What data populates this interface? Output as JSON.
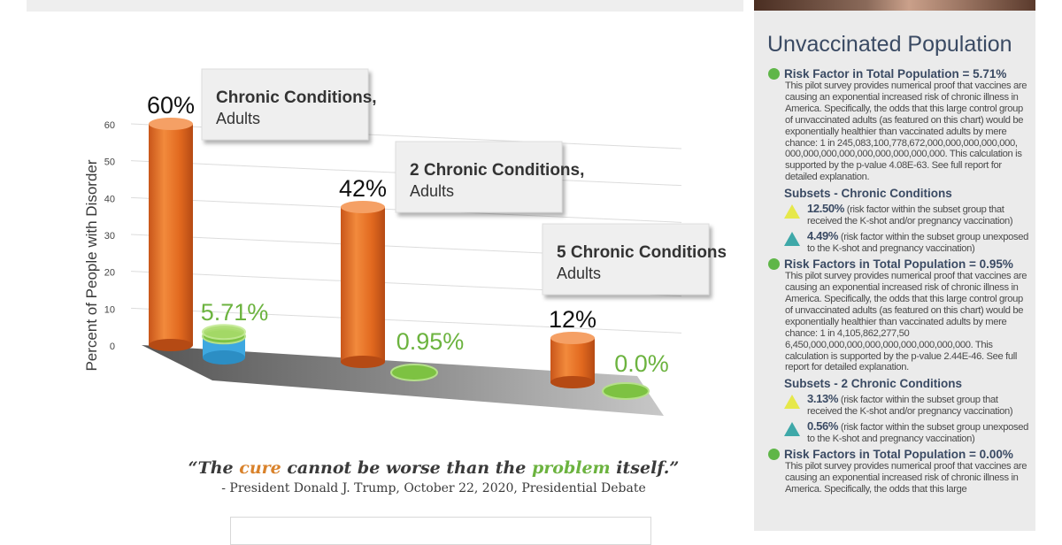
{
  "chart_data": {
    "type": "bar",
    "ylabel": "Percent of People with Disorder",
    "yticks": [
      0,
      10,
      20,
      30,
      40,
      50,
      60
    ],
    "ylim": [
      0,
      60
    ],
    "grid": true,
    "groups": [
      {
        "label": "Chronic Conditions,",
        "sublabel": "Adults",
        "vaccinated": 60,
        "vaccinated_label": "60%",
        "unvaccinated": 5.71,
        "unvaccinated_label": "5.71%"
      },
      {
        "label": "2 Chronic Conditions,",
        "sublabel": "Adults",
        "vaccinated": 42,
        "vaccinated_label": "42%",
        "unvaccinated": 0.95,
        "unvaccinated_label": "0.95%"
      },
      {
        "label": "5 Chronic Conditions,",
        "sublabel": "Adults",
        "vaccinated": 12,
        "vaccinated_label": "12%",
        "unvaccinated": 0.0,
        "unvaccinated_label": "0.0%"
      }
    ],
    "colors": {
      "vaccinated": "#e8722a",
      "unvaccinated": "#7dc242",
      "unvaccinated_subset": "#3ea8e0",
      "value_green": "#6cb33f"
    }
  },
  "quote": {
    "part1": "“The ",
    "cure": "cure",
    "part2": " cannot be worse than the ",
    "problem": "problem",
    "part3": " itself.”",
    "attribution": "- President Donald J. Trump, October 22, 2020, Presidential Debate"
  },
  "sidebar": {
    "title": "Unvaccinated Population",
    "rf1": {
      "heading": "Risk Factor in Total Population = 5.71%",
      "body": "This pilot survey provides numerical proof that vaccines are causing an exponential increased risk of chronic illness in America. Specifically, the odds that this large control group of unvaccinated adults (as featured on this chart) would be exponentially healthier than vaccinated adults by mere chance: 1 in 245,083,100,778,672,000,000,000,000,000, 000,000,000,000,000,000,000,000,000. This calculation is supported by the p-value 4.08E-63. See full report for detailed explanation."
    },
    "sub1": {
      "title": "Subsets - Chronic Conditions",
      "item1_pct": "12.50%",
      "item1_text": "(risk factor within the subset group that received the K-shot and/or pregnancy vaccination)",
      "item2_pct": "4.49%",
      "item2_text": "(risk factor within the subset group unexposed to the K-shot and pregnancy vaccination)"
    },
    "rf2": {
      "heading": "Risk Factors in Total Population = 0.95%",
      "body": "This pilot survey provides numerical proof that vaccines are causing an exponential increased risk of chronic illness in America. Specifically, the odds that this large control group of unvaccinated adults (as featured on this chart) would be exponentially healthier than vaccinated adults by mere chance: 1 in 4,105,862,277,50 6,450,000,000,000,000,000,000,000,000,000. This calculation is supported by the p-value 2.44E-46. See full report for detailed explanation."
    },
    "sub2": {
      "title": "Subsets - 2 Chronic Conditions",
      "item1_pct": "3.13%",
      "item1_text": "(risk factor within the subset group that received the K-shot and/or pregnancy vaccination)",
      "item2_pct": "0.56%",
      "item2_text": "(risk factor within the subset group unexposed to the K-shot and pregnancy vaccination)"
    },
    "rf3": {
      "heading": "Risk Factors in Total Population = 0.00%",
      "body": "This pilot survey provides numerical proof that vaccines are causing an exponential increased risk of chronic illness in America. Specifically, the odds that this large"
    }
  }
}
